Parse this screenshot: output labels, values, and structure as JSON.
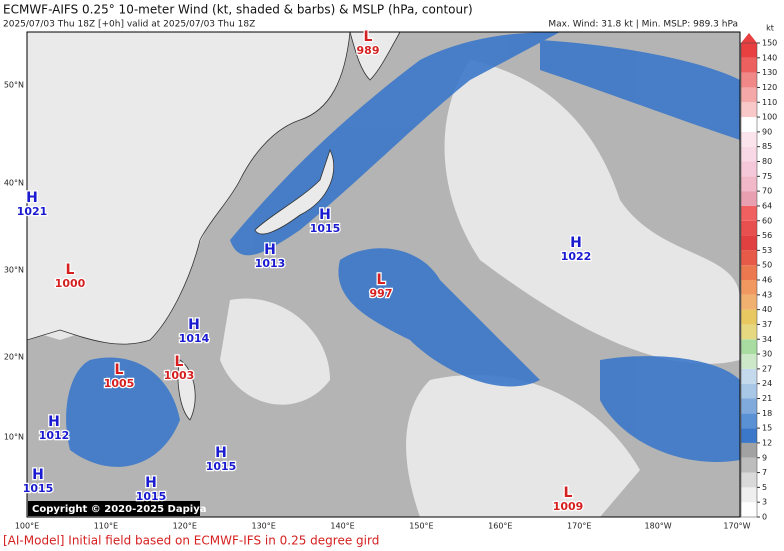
{
  "header": {
    "title": "ECMWF-AIFS 0.25° 10-meter Wind (kt, shaded & barbs) & MSLP (hPa, contour)",
    "subtitle": "2025/07/03 Thu 18Z [+0h] valid at 2025/07/03 Thu 18Z",
    "stats": "Max. Wind: 31.8 kt | Min. MSLP: 989.3 hPa"
  },
  "colorbar": {
    "unit": "kt",
    "ticks": [
      0,
      3,
      5,
      7,
      9,
      12,
      15,
      18,
      21,
      24,
      27,
      30,
      34,
      37,
      40,
      43,
      46,
      50,
      53,
      56,
      60,
      64,
      70,
      75,
      80,
      85,
      90,
      100,
      110,
      120,
      130,
      140,
      150
    ],
    "colors": [
      "#ffffff",
      "#efefef",
      "#d9d9d9",
      "#bdbdbd",
      "#a2a2a2",
      "#3b78c9",
      "#5a90d4",
      "#80aadc",
      "#a8c6e6",
      "#c4daec",
      "#cce8c8",
      "#a8dca0",
      "#e6d880",
      "#e8c860",
      "#f0b070",
      "#f09860",
      "#ec7850",
      "#e85a48",
      "#e04040",
      "#e85050",
      "#f06060",
      "#e8a0b0",
      "#f0b8c8",
      "#f4c8d8",
      "#f8d8e4",
      "#fce4ec",
      "#ffffff",
      "#f8c8c8",
      "#f4a8a8",
      "#f08888",
      "#ec6060",
      "#e84040"
    ]
  },
  "map": {
    "lat_labels": [
      "50°N",
      "40°N",
      "30°N",
      "20°N",
      "10°N"
    ],
    "lon_labels": [
      "100°E",
      "110°E",
      "120°E",
      "130°E",
      "140°E",
      "150°E",
      "160°E",
      "170°E",
      "180°W",
      "170°W"
    ],
    "centers": [
      {
        "type": "L",
        "pressure": 989
      },
      {
        "type": "H",
        "pressure": 1015
      },
      {
        "type": "H",
        "pressure": 1013
      },
      {
        "type": "L",
        "pressure": 997
      },
      {
        "type": "H",
        "pressure": 1022
      },
      {
        "type": "L",
        "pressure": 1000
      },
      {
        "type": "H",
        "pressure": 1014
      },
      {
        "type": "L",
        "pressure": 1005
      },
      {
        "type": "L",
        "pressure": 1003
      },
      {
        "type": "H",
        "pressure": 1012
      },
      {
        "type": "H",
        "pressure": 1015
      },
      {
        "type": "H",
        "pressure": 1015
      },
      {
        "type": "H",
        "pressure": 1015
      },
      {
        "type": "L",
        "pressure": 1009
      },
      {
        "type": "H",
        "pressure": 1021
      }
    ]
  },
  "copyright": "Copyright © 2020-2025 Dapiya",
  "footer": "[AI-Model] Initial field based on ECMWF-IFS in 0.25 degree gird"
}
